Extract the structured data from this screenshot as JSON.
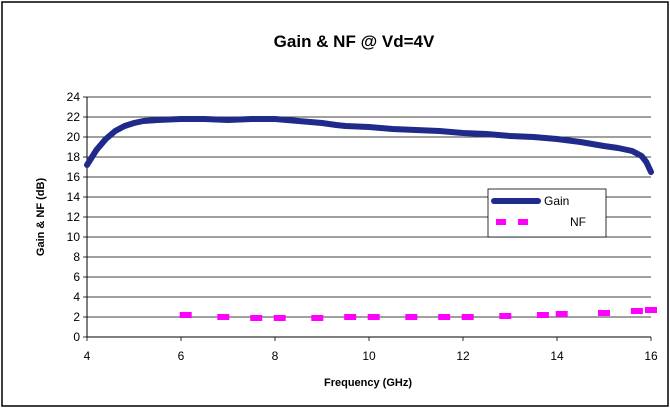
{
  "chart_data": {
    "type": "line",
    "title": "Gain & NF @ Vd=4V",
    "xlabel": "Frequency (GHz)",
    "ylabel": "Gain & NF (dB)",
    "xlim": [
      4,
      16
    ],
    "ylim": [
      0,
      24
    ],
    "x_ticks": [
      4,
      6,
      8,
      10,
      12,
      14,
      16
    ],
    "y_ticks": [
      0,
      2,
      4,
      6,
      8,
      10,
      12,
      14,
      16,
      18,
      20,
      22,
      24
    ],
    "grid": "horizontal",
    "legend_position": "right",
    "series": [
      {
        "name": "Gain",
        "color": "#1f2a8a",
        "style": "solid-thick",
        "x": [
          4.0,
          4.2,
          4.4,
          4.6,
          4.8,
          5.0,
          5.2,
          5.5,
          6.0,
          6.5,
          7.0,
          7.5,
          8.0,
          8.5,
          9.0,
          9.3,
          9.5,
          10.0,
          10.5,
          11.0,
          11.5,
          12.0,
          12.5,
          13.0,
          13.5,
          14.0,
          14.5,
          15.0,
          15.3,
          15.6,
          15.8,
          15.9,
          16.0
        ],
        "y": [
          17.2,
          18.7,
          19.8,
          20.6,
          21.1,
          21.4,
          21.6,
          21.7,
          21.8,
          21.8,
          21.7,
          21.8,
          21.8,
          21.6,
          21.4,
          21.2,
          21.1,
          21.0,
          20.8,
          20.7,
          20.6,
          20.4,
          20.3,
          20.1,
          20.0,
          19.8,
          19.5,
          19.1,
          18.9,
          18.6,
          18.1,
          17.5,
          16.5
        ]
      },
      {
        "name": "NF",
        "color": "#ff00ff",
        "style": "dashed-markers",
        "x": [
          6.1,
          6.9,
          7.6,
          8.1,
          8.9,
          9.6,
          10.1,
          10.9,
          11.6,
          12.1,
          12.9,
          13.7,
          14.1,
          15.0,
          15.7,
          16.0
        ],
        "y": [
          2.2,
          2.0,
          1.9,
          1.9,
          1.9,
          2.0,
          2.0,
          2.0,
          2.0,
          2.0,
          2.1,
          2.2,
          2.3,
          2.4,
          2.6,
          2.7
        ]
      }
    ]
  }
}
